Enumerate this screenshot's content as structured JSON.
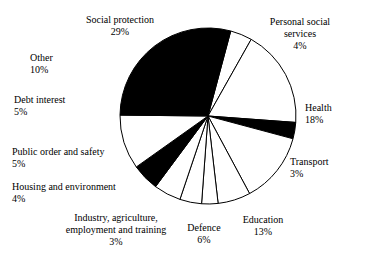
{
  "chart_data": {
    "type": "pie",
    "categories": [
      "Personal social services",
      "Health",
      "Transport",
      "Education",
      "Defence",
      "Industry, agriculture, employment and training",
      "Housing and environment",
      "Public order and safety",
      "Debt interest",
      "Other",
      "Social protection"
    ],
    "values": [
      4,
      18,
      3,
      13,
      6,
      3,
      4,
      5,
      5,
      10,
      29
    ],
    "value_labels": [
      "4%",
      "18%",
      "3%",
      "13%",
      "6%",
      "3%",
      "4%",
      "5%",
      "5%",
      "10%",
      "29%"
    ],
    "colors": [
      "#ffffff",
      "#ffffff",
      "#000000",
      "#ffffff",
      "#ffffff",
      "#ffffff",
      "#ffffff",
      "#ffffff",
      "#000000",
      "#ffffff",
      "#000000"
    ],
    "data_labels": true
  }
}
